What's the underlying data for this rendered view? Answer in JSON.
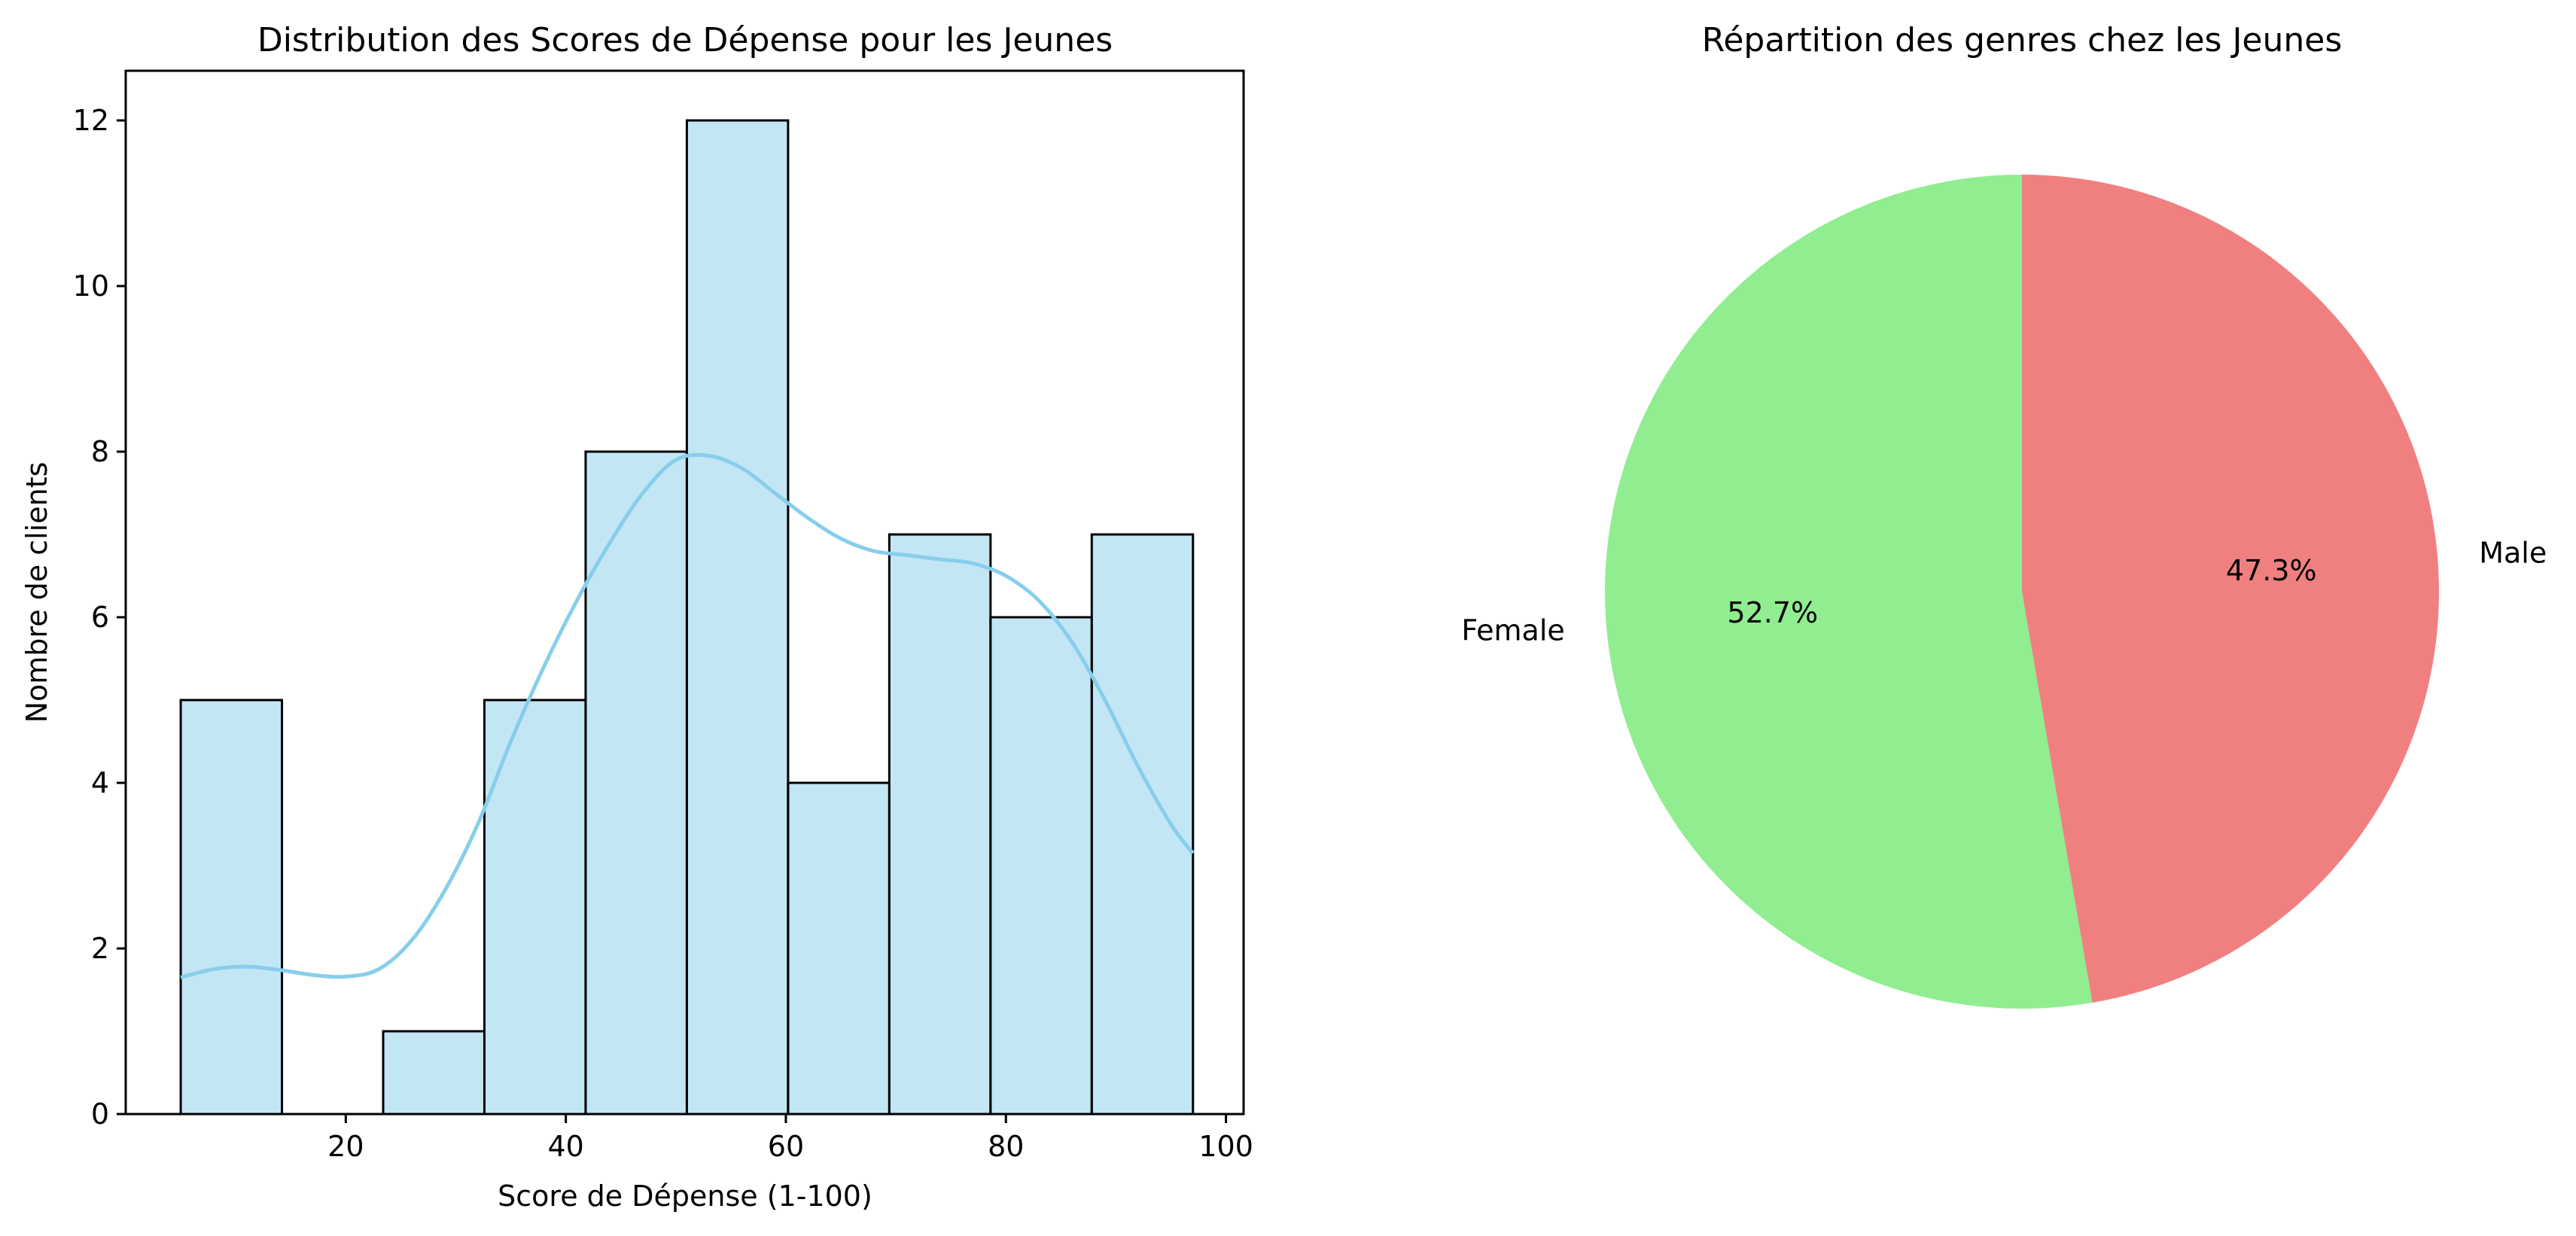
{
  "colors": {
    "hist_fill": "#87ceeb",
    "hist_edge": "#000000",
    "kde_line": "#87ceeb",
    "female": "#90ee90",
    "male": "#f08080"
  },
  "chart_data": [
    {
      "type": "bar",
      "subtype": "histogram_with_kde",
      "title": "Distribution des Scores de Dépense pour les Jeunes",
      "xlabel": "Score de Dépense (1-100)",
      "ylabel": "Nombre de clients",
      "bins": [
        {
          "start": 5,
          "end": 14.2,
          "count": 5
        },
        {
          "start": 14.2,
          "end": 23.4,
          "count": 0
        },
        {
          "start": 23.4,
          "end": 32.6,
          "count": 1
        },
        {
          "start": 32.6,
          "end": 41.8,
          "count": 5
        },
        {
          "start": 41.8,
          "end": 51.0,
          "count": 8
        },
        {
          "start": 51.0,
          "end": 60.2,
          "count": 12
        },
        {
          "start": 60.2,
          "end": 69.4,
          "count": 4
        },
        {
          "start": 69.4,
          "end": 78.6,
          "count": 7
        },
        {
          "start": 78.6,
          "end": 87.8,
          "count": 6
        },
        {
          "start": 87.8,
          "end": 97,
          "count": 7
        }
      ],
      "kde": {
        "x": [
          5,
          8,
          11,
          14,
          17,
          20,
          23,
          26,
          29,
          32,
          35,
          38,
          41,
          44,
          47,
          50,
          53,
          56,
          59,
          62,
          65,
          68,
          71,
          74,
          77,
          80,
          83,
          86,
          89,
          92,
          95,
          97
        ],
        "y": [
          1.65,
          1.75,
          1.78,
          1.74,
          1.68,
          1.66,
          1.75,
          2.1,
          2.7,
          3.5,
          4.5,
          5.4,
          6.2,
          6.9,
          7.5,
          7.9,
          7.95,
          7.8,
          7.5,
          7.2,
          6.95,
          6.8,
          6.75,
          6.7,
          6.65,
          6.5,
          6.2,
          5.7,
          5.0,
          4.2,
          3.5,
          3.15
        ]
      },
      "xlim": [
        0,
        101.6
      ],
      "ylim": [
        0,
        12.6
      ],
      "xticks": [
        20,
        40,
        60,
        80,
        100
      ],
      "yticks": [
        0,
        2,
        4,
        6,
        8,
        10,
        12
      ],
      "grid": false
    },
    {
      "type": "pie",
      "title": "Répartition des genres chez les Jeunes",
      "slices": [
        {
          "label": "Female",
          "value": 52.7,
          "pct_label": "52.7%",
          "color": "#90ee90"
        },
        {
          "label": "Male",
          "value": 47.3,
          "pct_label": "47.3%",
          "color": "#f08080"
        }
      ],
      "startangle": 90,
      "direction": "counterclockwise"
    }
  ]
}
